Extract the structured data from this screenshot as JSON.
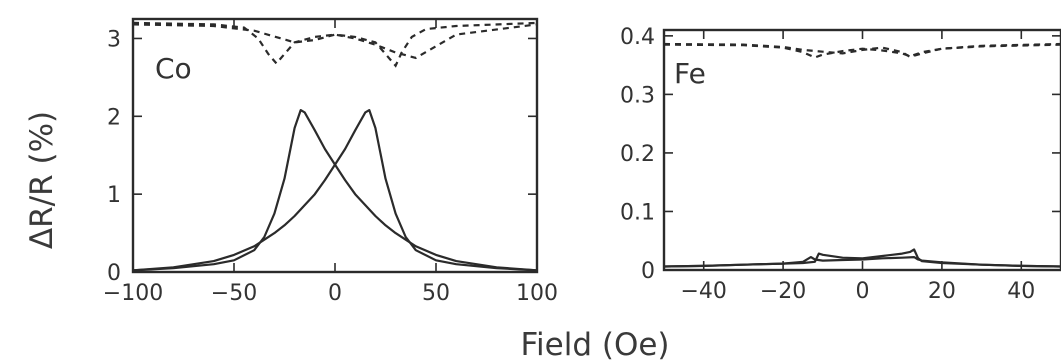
{
  "figure": {
    "xlabel": "Field (Oe)",
    "ylabel": "ΔR/R (%)"
  },
  "chart_data": [
    {
      "type": "line",
      "panel_label": "Co",
      "xlim": [
        -100,
        100
      ],
      "ylim": [
        0,
        3.25
      ],
      "xticks": [
        -100,
        -50,
        0,
        50,
        100
      ],
      "xtick_labels": [
        "−100",
        "−50",
        "0",
        "50",
        "100"
      ],
      "yticks": [
        0,
        1,
        2,
        3
      ],
      "ytick_labels": [
        "0",
        "1",
        "2",
        "3"
      ],
      "grid": false,
      "series": [
        {
          "style": "solid",
          "x": [
            -100,
            -80,
            -60,
            -50,
            -40,
            -35,
            -30,
            -25,
            -20,
            -17,
            -15,
            -10,
            -5,
            0,
            5,
            10,
            15,
            20,
            25,
            30,
            40,
            50,
            60,
            80,
            100
          ],
          "y": [
            0.02,
            0.05,
            0.1,
            0.15,
            0.28,
            0.45,
            0.75,
            1.2,
            1.85,
            2.08,
            2.05,
            1.82,
            1.58,
            1.38,
            1.18,
            1.0,
            0.86,
            0.72,
            0.6,
            0.5,
            0.33,
            0.22,
            0.14,
            0.06,
            0.02
          ]
        },
        {
          "style": "solid",
          "x": [
            -100,
            -80,
            -60,
            -50,
            -40,
            -30,
            -25,
            -20,
            -15,
            -10,
            -5,
            0,
            5,
            10,
            15,
            17,
            20,
            25,
            30,
            35,
            40,
            50,
            60,
            80,
            100
          ],
          "y": [
            0.02,
            0.06,
            0.14,
            0.22,
            0.33,
            0.5,
            0.6,
            0.72,
            0.86,
            1.0,
            1.18,
            1.38,
            1.58,
            1.82,
            2.05,
            2.08,
            1.85,
            1.2,
            0.75,
            0.45,
            0.28,
            0.15,
            0.1,
            0.05,
            0.02
          ]
        },
        {
          "style": "dashed",
          "x": [
            -100,
            -60,
            -45,
            -38,
            -33,
            -29,
            -25,
            -20,
            -10,
            0,
            10,
            20,
            30,
            40,
            60,
            100
          ],
          "y": [
            3.2,
            3.18,
            3.14,
            3.0,
            2.8,
            2.68,
            2.8,
            2.95,
            3.02,
            3.05,
            3.0,
            2.92,
            2.82,
            2.75,
            3.05,
            3.18
          ]
        },
        {
          "style": "dashed",
          "x": [
            -100,
            -60,
            -40,
            -20,
            -10,
            0,
            10,
            20,
            25,
            30,
            33,
            38,
            45,
            60,
            100
          ],
          "y": [
            3.18,
            3.16,
            3.1,
            2.95,
            2.98,
            3.05,
            3.02,
            2.95,
            2.8,
            2.65,
            2.82,
            3.02,
            3.12,
            3.16,
            3.2
          ]
        }
      ]
    },
    {
      "type": "line",
      "panel_label": "Fe",
      "xlim": [
        -50,
        50
      ],
      "ylim": [
        0,
        0.41
      ],
      "xticks": [
        -40,
        -20,
        0,
        20,
        40
      ],
      "xtick_labels": [
        "−40",
        "−20",
        "0",
        "20",
        "40"
      ],
      "yticks": [
        0,
        0.1,
        0.2,
        0.3,
        0.4
      ],
      "ytick_labels": [
        "0",
        "0.1",
        "0.2",
        "0.3",
        "0.4"
      ],
      "grid": false,
      "series": [
        {
          "style": "solid",
          "x": [
            -50,
            -40,
            -30,
            -20,
            -15,
            -13,
            -12,
            -10,
            -5,
            0,
            5,
            10,
            13,
            14,
            15,
            20,
            30,
            40,
            50
          ],
          "y": [
            0.006,
            0.007,
            0.009,
            0.011,
            0.014,
            0.022,
            0.018,
            0.016,
            0.017,
            0.018,
            0.02,
            0.021,
            0.022,
            0.018,
            0.016,
            0.013,
            0.009,
            0.007,
            0.006
          ]
        },
        {
          "style": "solid",
          "x": [
            -50,
            -40,
            -30,
            -20,
            -15,
            -12,
            -11,
            -10,
            -5,
            0,
            5,
            10,
            12,
            13,
            14,
            15,
            20,
            30,
            40,
            50
          ],
          "y": [
            0.006,
            0.007,
            0.009,
            0.011,
            0.012,
            0.014,
            0.028,
            0.026,
            0.021,
            0.02,
            0.024,
            0.028,
            0.031,
            0.035,
            0.02,
            0.015,
            0.012,
            0.009,
            0.007,
            0.006
          ]
        },
        {
          "style": "dashed",
          "x": [
            -50,
            -30,
            -20,
            -15,
            -12,
            -10,
            -5,
            0,
            5,
            10,
            12,
            15,
            20,
            30,
            50
          ],
          "y": [
            0.385,
            0.384,
            0.38,
            0.372,
            0.363,
            0.368,
            0.374,
            0.378,
            0.375,
            0.37,
            0.365,
            0.372,
            0.378,
            0.382,
            0.385
          ]
        },
        {
          "style": "dashed",
          "x": [
            -50,
            -30,
            -20,
            -15,
            -10,
            -5,
            0,
            5,
            10,
            12,
            15,
            20,
            30,
            50
          ],
          "y": [
            0.386,
            0.385,
            0.381,
            0.376,
            0.373,
            0.37,
            0.376,
            0.38,
            0.372,
            0.364,
            0.37,
            0.378,
            0.383,
            0.386
          ]
        }
      ]
    }
  ]
}
